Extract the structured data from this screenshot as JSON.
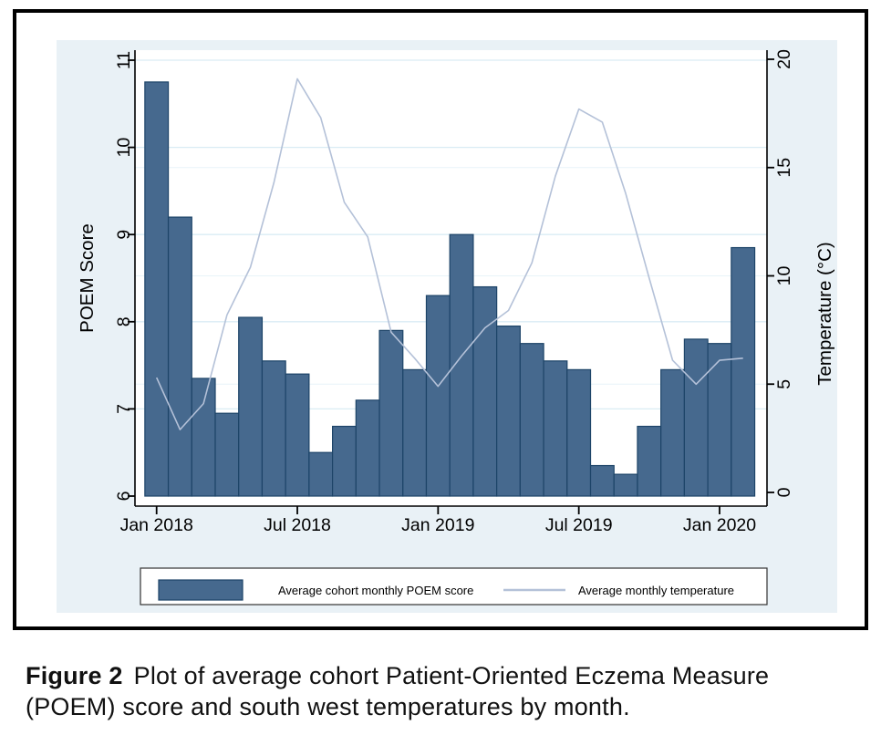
{
  "figure": {
    "caption_bold": "Figure 2",
    "caption_line1_rest": "Plot of average cohort Patient-Oriented Eczema Measure",
    "caption_line2": "(POEM) score and south west temperatures by month."
  },
  "chart_data": {
    "type": "bar+line dual-axis",
    "months": [
      "Jan 2018",
      "Feb 2018",
      "Mar 2018",
      "Apr 2018",
      "May 2018",
      "Jun 2018",
      "Jul 2018",
      "Aug 2018",
      "Sep 2018",
      "Oct 2018",
      "Nov 2018",
      "Dec 2018",
      "Jan 2019",
      "Feb 2019",
      "Mar 2019",
      "Apr 2019",
      "May 2019",
      "Jun 2019",
      "Jul 2019",
      "Aug 2019",
      "Sep 2019",
      "Oct 2019",
      "Nov 2019",
      "Dec 2019",
      "Jan 2020",
      "Feb 2020"
    ],
    "series": [
      {
        "name": "Average cohort monthly POEM score",
        "type": "bar",
        "axis": "left",
        "values": [
          10.75,
          9.2,
          7.35,
          6.95,
          8.05,
          7.55,
          7.4,
          6.5,
          6.8,
          7.1,
          7.9,
          7.45,
          8.3,
          9.0,
          8.4,
          7.95,
          7.75,
          7.55,
          7.45,
          6.35,
          6.25,
          6.8,
          7.45,
          7.8,
          7.75,
          8.85
        ]
      },
      {
        "name": "Average monthly temperature",
        "type": "line",
        "axis": "right",
        "values": [
          5.3,
          2.9,
          4.1,
          8.2,
          10.4,
          14.3,
          19.1,
          17.3,
          13.4,
          11.8,
          7.4,
          6.2,
          4.9,
          6.3,
          7.6,
          8.4,
          10.6,
          14.6,
          17.7,
          17.1,
          13.8,
          9.9,
          6.1,
          5.0,
          6.1,
          6.2
        ]
      }
    ],
    "left_axis": {
      "label": "POEM Score",
      "ticks": [
        6,
        7,
        8,
        9,
        10,
        11
      ],
      "range": [
        6,
        11
      ]
    },
    "right_axis": {
      "label": "Temperature (°C)",
      "ticks": [
        0,
        5,
        10,
        15,
        20
      ],
      "range": [
        0,
        20
      ]
    },
    "x_axis": {
      "tick_labels": [
        "Jan 2018",
        "Jul 2018",
        "Jan 2019",
        "Jul 2019",
        "Jan 2020"
      ],
      "tick_month_indices": [
        0,
        6,
        12,
        18,
        24
      ]
    },
    "legend_position": "bottom",
    "grid": true,
    "colors": {
      "bar_fill": "#46698e",
      "bar_border": "#1d4468",
      "temp_line": "#b4c1d8",
      "panel_bg": "#e9f1f6",
      "plot_bg": "#ffffff",
      "gridline": "#d9ecf4",
      "gridline_faint": "#e8f3f8",
      "axis": "#000000"
    }
  }
}
